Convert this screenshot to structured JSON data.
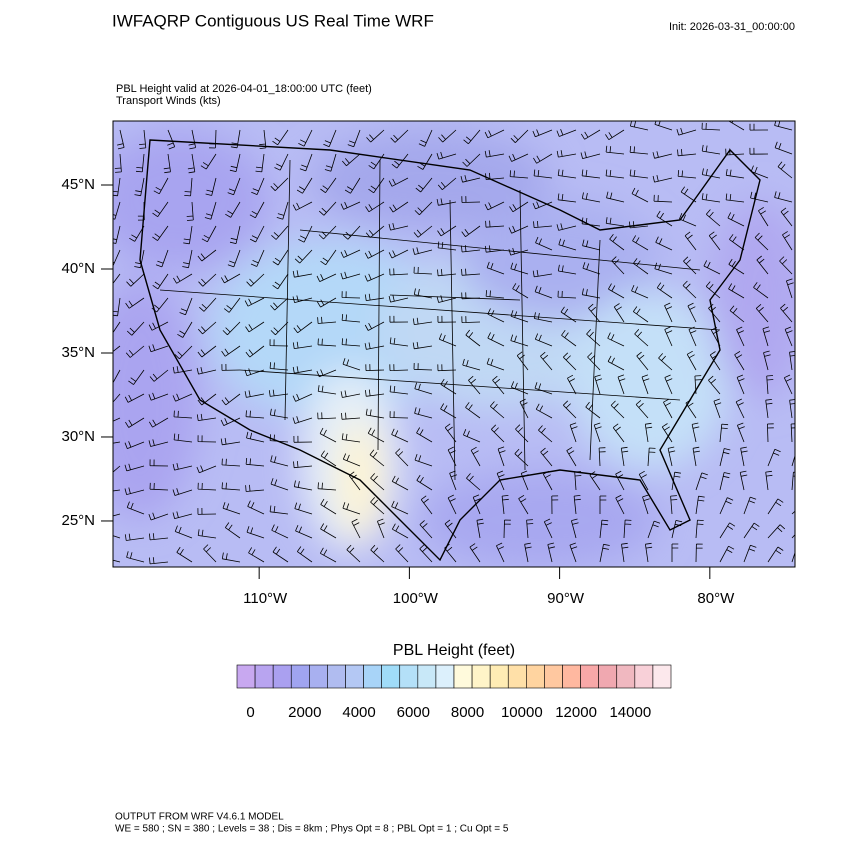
{
  "header": {
    "title": "IWFAQRP Contiguous US Real Time WRF",
    "init": "Init: 2026-03-31_00:00:00"
  },
  "map": {
    "field_label": "PBL Height valid at 2026-04-01_18:00:00 UTC   (feet)",
    "vector_label": "Transport Winds   (kts)",
    "xlim": [
      -119.73,
      -74.33
    ],
    "ylim": [
      22.26,
      48.81
    ],
    "xticks": [
      {
        "value": -110,
        "label": "110°W"
      },
      {
        "value": -100,
        "label": "100°W"
      },
      {
        "value": -90,
        "label": "90°W"
      },
      {
        "value": -80,
        "label": "80°W"
      }
    ],
    "yticks": [
      {
        "value": 25,
        "label": "25°N"
      },
      {
        "value": 30,
        "label": "30°N"
      },
      {
        "value": 35,
        "label": "35°N"
      },
      {
        "value": 40,
        "label": "40°N"
      },
      {
        "value": 45,
        "label": "45°N"
      }
    ]
  },
  "colorbar": {
    "title": "PBL Height  (feet)",
    "lim": [
      -500,
      15500
    ],
    "ticks": [
      0,
      2000,
      4000,
      6000,
      8000,
      10000,
      12000,
      14000
    ],
    "colors": [
      "#c8a8f0",
      "#b8a4f0",
      "#aaa0f0",
      "#a0a4f0",
      "#a8b0f0",
      "#b0bcf0",
      "#b4c8f4",
      "#a8d4f8",
      "#a0dcf8",
      "#b4e0f8",
      "#c8e8f8",
      "#dcf0fc",
      "#fffadc",
      "#fff4c8",
      "#ffecb4",
      "#ffe0a8",
      "#ffd4a0",
      "#ffc8a0",
      "#ffb8a0",
      "#f8a8a8",
      "#f0a8b0",
      "#f0b8c0",
      "#f8d0d8",
      "#fce8ec"
    ]
  },
  "footer": {
    "line1": "OUTPUT FROM WRF V4.6.1 MODEL",
    "line2": "WE = 580 ; SN = 380 ; Levels = 38 ; Dis = 8km ; Phys Opt = 8 ; PBL Opt = 1 ; Cu Opt = 5"
  }
}
